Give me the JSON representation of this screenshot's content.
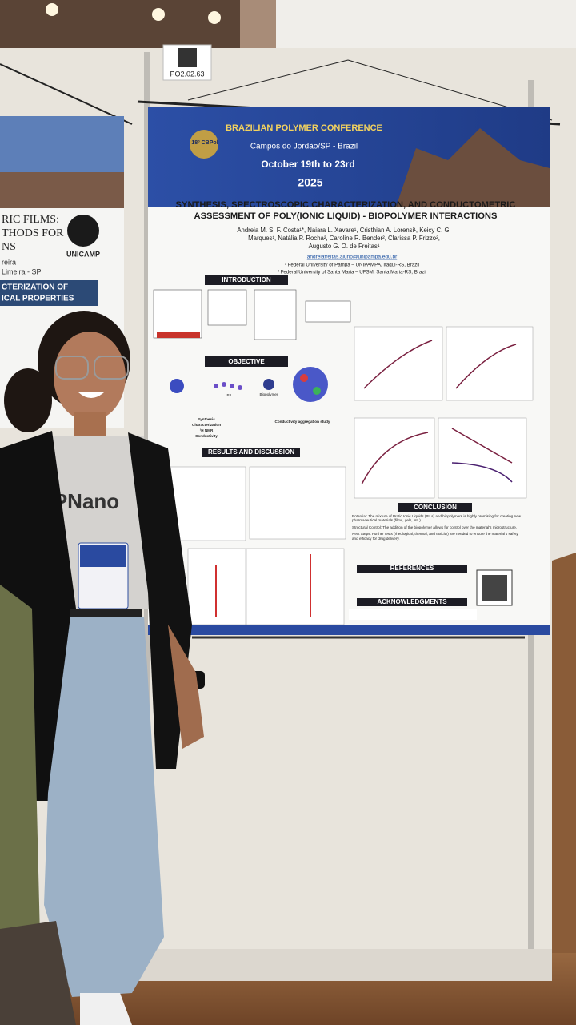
{
  "board_label": "PO2.02.63",
  "left_poster": {
    "lines": [
      "RIC FILMS:",
      "THODS FOR",
      "NS",
      "reira",
      "Limeira - SP"
    ],
    "logo": "UNICAMP",
    "banner": [
      "CTERIZATION OF",
      "ICAL PROPERTIES"
    ]
  },
  "poster": {
    "logo": "18º CBPol",
    "conference": "BRAZILIAN POLYMER CONFERENCE",
    "location": "Campos do Jordão/SP - Brazil",
    "dates": "October 19th to 23rd",
    "year": "2025",
    "title_lines": [
      "SYNTHESIS, SPECTROSCOPIC CHARACTERIZATION, AND CONDUCTOMETRIC",
      "ASSESSMENT OF POLY(IONIC LIQUID) - BIOPOLYMER INTERACTIONS"
    ],
    "author_lines": [
      "Andreia M. S. F. Costa¹*, Naiara L. Xavare¹, Cristhian A. Lorensi¹, Keicy C. G.",
      "Marques¹, Natália P. Rocha², Caroline R. Bender², Clarissa P. Frizzo²,",
      "Augusto G. O. de Freitas¹"
    ],
    "email": "andreiafreitas.aluno@unipampa.edu.br",
    "affiliations": [
      "¹ Federal University of Pampa – UNIPAMPA, Itaqui-RS, Brazil",
      "² Federal University of Santa Maria – UFSM, Santa Maria-RS, Brazil"
    ],
    "sections": {
      "introduction": "INTRODUCTION",
      "objective": "OBJECTIVE",
      "results": "RESULTS AND DISCUSSION",
      "conclusion": "CONCLUSION",
      "references": "REFERENCES",
      "acknowledgments": "ACKNOWLEDGMENTS"
    },
    "objective_labels": [
      "PIL",
      "Biopolymer",
      "Synthesis",
      "Characterization",
      "¹H NMR",
      "Conductivity",
      "Conductivity aggregation study"
    ],
    "conclusion_items": [
      "Potential: The mixture of Protic Ionic Liquids (PILs) and biopolymers is highly promising for creating new pharmaceutical materials (films, gels, etc.).",
      "Structural Control: The addition of the biopolymer allows for control over the material's microstructure.",
      "Next Steps: Further tests (rheological, thermal, and toxicity) are needed to ensure the material's safety and efficacy for drug delivery."
    ]
  },
  "shirt_text": "PNano"
}
